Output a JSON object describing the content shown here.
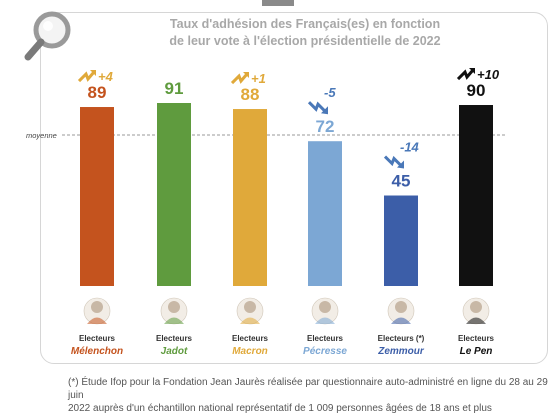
{
  "title_line1": "Taux d'adhésion des Français(es) en fonction",
  "title_line2": "de leur vote à l'élection présidentielle de 2022",
  "average_label": "moyenne",
  "footnote_line1": "(*) Étude Ifop pour la Fondation Jean Jaurès réalisée par questionnaire auto-administré en ligne du 28 au 29 juin",
  "footnote_line2": "2022 auprès d'un échantillon national représentatif de 1 009 personnes âgées de 18 ans et plus",
  "colors": {
    "melenchon": "#c4531e",
    "jadot": "#5f9b3e",
    "macron": "#e0a93a",
    "pecresse": "#7ca7d4",
    "zemmour": "#3c5ea8",
    "lepen": "#111111",
    "up": "#e0a93a",
    "down": "#4a78b8"
  },
  "chart_data": {
    "type": "bar",
    "title": "Taux d'adhésion des Français(es) en fonction de leur vote à l'élection présidentielle de 2022",
    "categories": [
      "Electeurs Mélenchon",
      "Electeurs Jadot",
      "Electeurs Macron",
      "Electeurs Pécresse",
      "Electeurs (*) Zemmour",
      "Electeurs Le Pen"
    ],
    "values": [
      89,
      91,
      88,
      72,
      45,
      90
    ],
    "changes": [
      "+4",
      "",
      "+1",
      "-5",
      "-14",
      "+10"
    ],
    "ylim": [
      0,
      100
    ],
    "grid": false,
    "legend": "none"
  },
  "bars": [
    {
      "voter_label": "Electeurs",
      "candidate": "Mélenchon",
      "value_label": "89",
      "change_label": "+4",
      "color_key": "melenchon",
      "trend": "up"
    },
    {
      "voter_label": "Electeurs",
      "candidate": "Jadot",
      "value_label": "91",
      "change_label": "",
      "color_key": "jadot",
      "trend": "none"
    },
    {
      "voter_label": "Electeurs",
      "candidate": "Macron",
      "value_label": "88",
      "change_label": "+1",
      "color_key": "macron",
      "trend": "up"
    },
    {
      "voter_label": "Electeurs",
      "candidate": "Pécresse",
      "value_label": "72",
      "change_label": "-5",
      "color_key": "pecresse",
      "trend": "down"
    },
    {
      "voter_label": "Electeurs (*)",
      "candidate": "Zemmour",
      "value_label": "45",
      "change_label": "-14",
      "color_key": "zemmour",
      "trend": "down"
    },
    {
      "voter_label": "Electeurs",
      "candidate": "Le Pen",
      "value_label": "90",
      "change_label": "+10",
      "color_key": "lepen",
      "trend": "up"
    }
  ],
  "icons": {
    "magnifier": "magnifier-icon",
    "trend_up": "zigzag-up-arrow-icon",
    "trend_down": "zigzag-down-arrow-icon"
  }
}
